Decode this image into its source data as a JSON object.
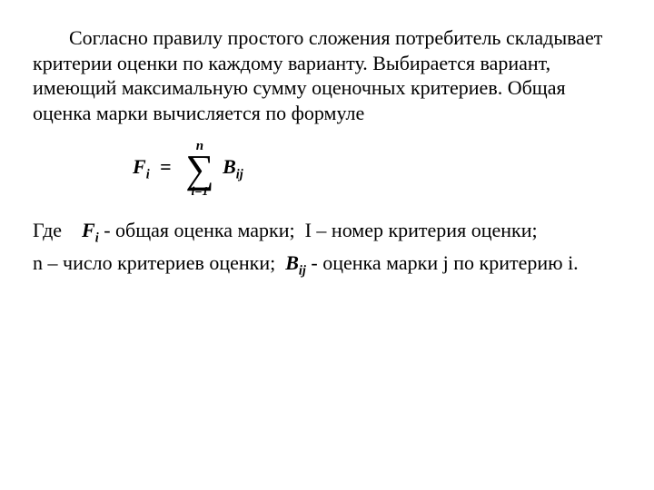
{
  "text": {
    "paragraph": "Согласно правилу простого сложения потребитель складывает критерии оценки по каждому варианту. Выбирается вариант, имеющий максимальную сумму оценочных критериев. Общая оценка марки вычисляется по формуле",
    "where_label": "Где",
    "fi_desc": "- общая оценка марки;",
    "i_label": "I",
    "i_desc": "– номер критерия оценки;",
    "n_label": "n",
    "n_desc": "– число критериев оценки;",
    "bij_desc": "- оценка марки j по критерию i."
  },
  "formula": {
    "lhs_var": "F",
    "lhs_sub": "i",
    "equals": "=",
    "sum_symbol": "∑",
    "sum_top": "n",
    "sum_bottom": "i=1",
    "rhs_var": "B",
    "rhs_sub": "ij"
  },
  "inline_vars": {
    "Fi_var": "F",
    "Fi_sub": "i",
    "Bij_var": "B",
    "Bij_sub": "ij"
  },
  "colors": {
    "background": "#ffffff",
    "text": "#000000"
  },
  "typography": {
    "body_fontsize": 22,
    "formula_fontsize": 22,
    "sigma_fontsize": 44,
    "sum_limit_fontsize": 14,
    "font_family": "Times New Roman"
  }
}
